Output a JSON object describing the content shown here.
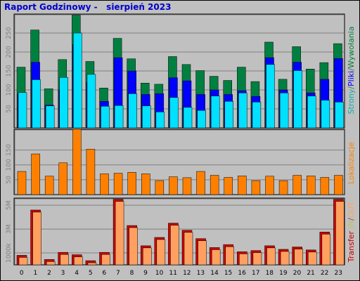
{
  "title": "Raport Godzinowy -   sierpień 2023",
  "colors": {
    "background": "#c0c0c0",
    "title": "#0000cc",
    "strony": "#008040",
    "pliki": "#0000ff",
    "wywolania": "#00e0ff",
    "lokalizacje": "#ff8000",
    "transfer_outer": "#cc0000",
    "transfer_inner": "#ffa060"
  },
  "right_labels": {
    "top": [
      {
        "text": "Strony",
        "color": "#00b0b0"
      },
      {
        "text": "/",
        "color": "#606060"
      },
      {
        "text": "Pliki",
        "color": "#0000ff"
      },
      {
        "text": "/",
        "color": "#606060"
      },
      {
        "text": "Wywołania",
        "color": "#008040"
      }
    ],
    "middle": [
      {
        "text": "Lokalizacje",
        "color": "#ff8000"
      }
    ],
    "bottom": [
      {
        "text": "Transfer",
        "color": "#cc0000"
      },
      {
        "text": " ",
        "color": "#606060"
      },
      {
        "text": "IN",
        "color": "#c0c060"
      },
      {
        "text": "/",
        "color": "#606060"
      },
      {
        "text": "OUT",
        "color": "#ffa060"
      }
    ]
  },
  "chart_data": [
    {
      "type": "bar",
      "panel": "hits",
      "x": [
        "0",
        "1",
        "2",
        "3",
        "4",
        "5",
        "6",
        "7",
        "8",
        "9",
        "10",
        "11",
        "12",
        "13",
        "14",
        "15",
        "16",
        "17",
        "18",
        "19",
        "20",
        "21",
        "22",
        "23"
      ],
      "ylim": [
        0,
        300
      ],
      "yticks": [
        "50",
        "100",
        "150",
        "200",
        "250"
      ],
      "series": [
        {
          "name": "Wywołania",
          "values": [
            160,
            258,
            103,
            180,
            297,
            175,
            105,
            236,
            182,
            118,
            115,
            188,
            167,
            151,
            136,
            125,
            160,
            122,
            226,
            128,
            214,
            155,
            172,
            222
          ]
        },
        {
          "name": "Pliki",
          "values": [
            90,
            173,
            60,
            100,
            220,
            120,
            70,
            185,
            150,
            88,
            90,
            132,
            124,
            88,
            100,
            88,
            98,
            83,
            185,
            100,
            173,
            92,
            128,
            183
          ]
        },
        {
          "name": "Strony",
          "values": [
            93,
            127,
            58,
            133,
            250,
            141,
            57,
            59,
            90,
            58,
            42,
            80,
            54,
            46,
            84,
            70,
            92,
            68,
            167,
            92,
            151,
            84,
            73,
            68
          ]
        }
      ]
    },
    {
      "type": "bar",
      "panel": "visits",
      "x": [
        "0",
        "1",
        "2",
        "3",
        "4",
        "5",
        "6",
        "7",
        "8",
        "9",
        "10",
        "11",
        "12",
        "13",
        "14",
        "15",
        "16",
        "17",
        "18",
        "19",
        "20",
        "21",
        "22",
        "23"
      ],
      "ylim": [
        0,
        220
      ],
      "yticks": [
        "50",
        "100",
        "150"
      ],
      "series": [
        {
          "name": "Lokalizacje",
          "values": [
            78,
            137,
            62,
            107,
            220,
            153,
            70,
            72,
            75,
            70,
            47,
            60,
            57,
            78,
            65,
            58,
            63,
            47,
            62,
            47,
            65,
            63,
            58,
            65
          ]
        }
      ]
    },
    {
      "type": "bar",
      "panel": "kbytes",
      "x": [
        "0",
        "1",
        "2",
        "3",
        "4",
        "5",
        "6",
        "7",
        "8",
        "9",
        "10",
        "11",
        "12",
        "13",
        "14",
        "15",
        "16",
        "17",
        "18",
        "19",
        "20",
        "21",
        "22",
        "23"
      ],
      "ylim": [
        0,
        5600
      ],
      "yticks": [
        "1000k",
        "3M",
        "5M"
      ],
      "series": [
        {
          "name": "Transfer",
          "values": [
            800,
            4600,
            450,
            1050,
            850,
            350,
            1050,
            5500,
            3300,
            1600,
            2300,
            3500,
            2900,
            2200,
            1450,
            1700,
            1100,
            1200,
            1600,
            1300,
            1500,
            1250,
            2750,
            5500
          ]
        }
      ]
    }
  ]
}
